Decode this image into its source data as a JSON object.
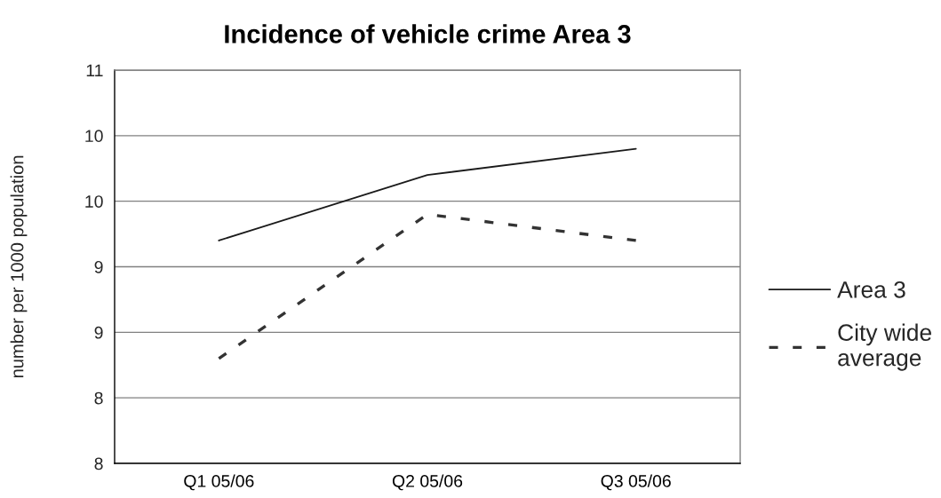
{
  "chart_data": {
    "type": "line",
    "title": "Incidence of vehicle crime Area 3",
    "ylabel": "number per 1000 population",
    "categories": [
      "Q1 05/06",
      "Q2 05/06",
      "Q3 05/06"
    ],
    "series": [
      {
        "name": "Area 3",
        "color": "#1a1a1a",
        "line_style": "solid",
        "values": [
          9.2,
          9.7,
          9.9
        ]
      },
      {
        "name": "City wide average",
        "color": "#333333",
        "line_style": "dashed",
        "values": [
          8.3,
          9.4,
          9.2
        ]
      }
    ],
    "ylim": [
      7.5,
      10.5
    ],
    "yticks": [
      {
        "value": 7.5,
        "label": "8"
      },
      {
        "value": 8.0,
        "label": "8"
      },
      {
        "value": 8.5,
        "label": "9"
      },
      {
        "value": 9.0,
        "label": "9"
      },
      {
        "value": 9.5,
        "label": "10"
      },
      {
        "value": 10.0,
        "label": "10"
      },
      {
        "value": 10.5,
        "label": "11"
      }
    ],
    "grid": "y",
    "legend": "right",
    "marker": "none"
  }
}
